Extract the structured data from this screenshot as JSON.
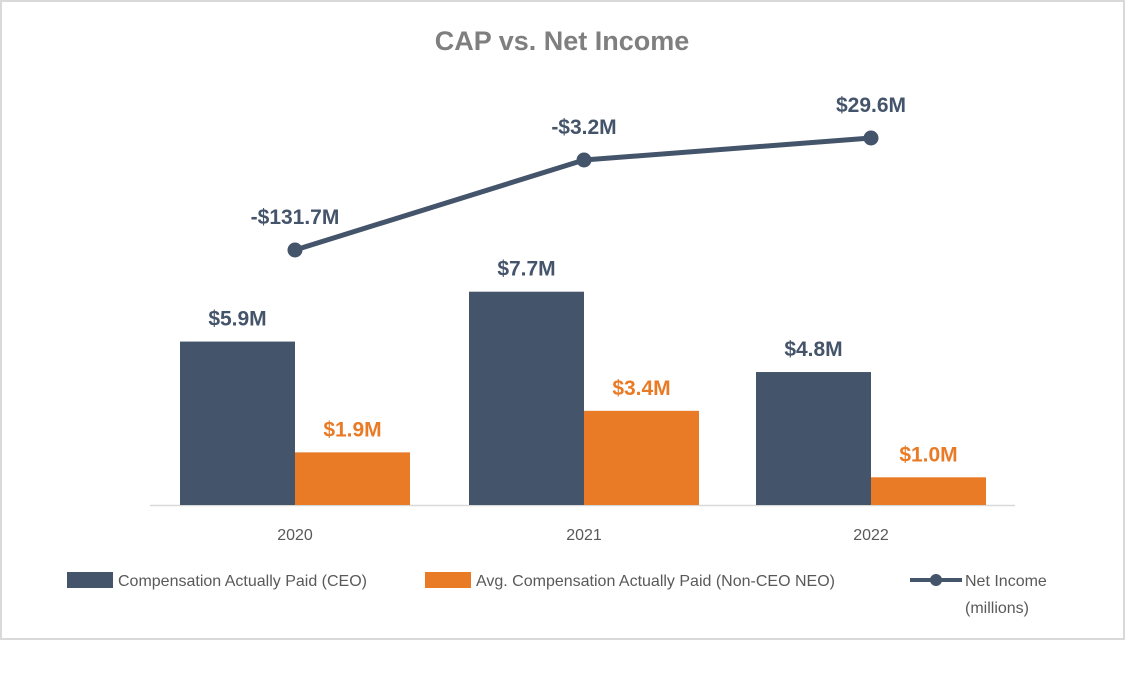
{
  "chart_data": {
    "type": "bar",
    "title": "CAP vs. Net Income",
    "categories": [
      "2020",
      "2021",
      "2022"
    ],
    "series": [
      {
        "name": "Compensation Actually Paid (CEO)",
        "kind": "bar",
        "color": "#44546A",
        "values": [
          5.9,
          7.7,
          4.8
        ],
        "labels": [
          "$5.9M",
          "$7.7M",
          "$4.8M"
        ]
      },
      {
        "name": "Avg. Compensation Actually Paid (Non-CEO NEO)",
        "kind": "bar",
        "color": "#E97A26",
        "values": [
          1.9,
          3.4,
          1.0
        ],
        "labels": [
          "$1.9M",
          "$3.4M",
          "$1.0M"
        ]
      },
      {
        "name": "Net Income (millions)",
        "kind": "line",
        "color": "#44546A",
        "values": [
          -131.7,
          -3.2,
          29.6
        ],
        "labels": [
          "-$131.7M",
          "-$3.2M",
          "$29.6M"
        ],
        "axis": "secondary-hidden"
      }
    ],
    "legend": {
      "position": "bottom",
      "entries": [
        "Compensation Actually Paid (CEO)",
        "Avg. Compensation Actually Paid (Non-CEO NEO)",
        "Net Income",
        "(millions)"
      ]
    },
    "xlabel": "",
    "ylabel": "",
    "grid": false
  }
}
